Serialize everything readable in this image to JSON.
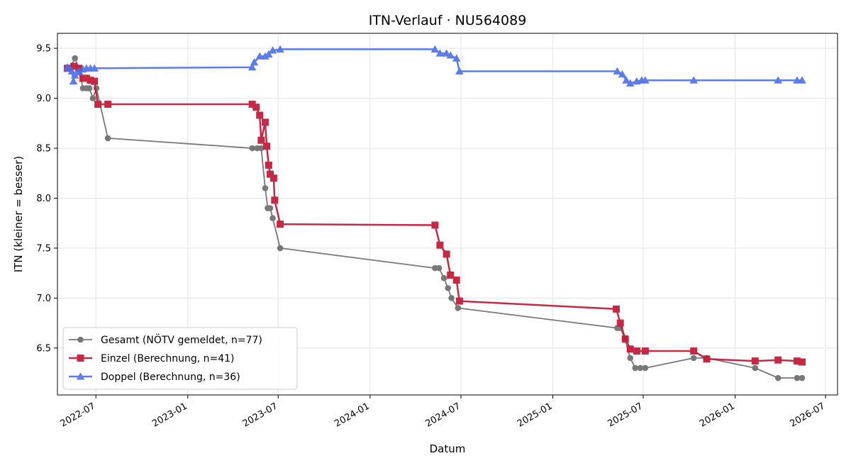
{
  "chart_data": {
    "type": "line",
    "title": "ITN-Verlauf · NU564089",
    "xlabel": "Datum",
    "ylabel": "ITN  (kleiner = besser)",
    "xlim": [
      "2022-04-15",
      "2026-07-25"
    ],
    "ylim": [
      6.03,
      9.65
    ],
    "grid": true,
    "legend_position": "lower-left",
    "x_ticks": [
      "2022-07",
      "2023-01",
      "2023-07",
      "2024-01",
      "2024-07",
      "2025-01",
      "2025-07",
      "2026-01",
      "2026-07"
    ],
    "y_ticks": [
      "6.5",
      "7.0",
      "7.5",
      "8.0",
      "8.5",
      "9.0",
      "9.5"
    ],
    "series": [
      {
        "name": "Gesamt (NÖTV gemeldet, n=77)",
        "color": "#404040",
        "marker": "circle",
        "points": [
          [
            "2022-05-10",
            9.3
          ],
          [
            "2022-05-20",
            9.4
          ],
          [
            "2022-05-28",
            9.3
          ],
          [
            "2022-06-05",
            9.1
          ],
          [
            "2022-06-12",
            9.1
          ],
          [
            "2022-06-18",
            9.1
          ],
          [
            "2022-06-25",
            9.0
          ],
          [
            "2022-07-02",
            9.1
          ],
          [
            "2022-07-25",
            8.6
          ],
          [
            "2023-05-10",
            8.5
          ],
          [
            "2023-05-20",
            8.5
          ],
          [
            "2023-05-28",
            8.5
          ],
          [
            "2023-06-05",
            8.1
          ],
          [
            "2023-06-10",
            7.9
          ],
          [
            "2023-06-15",
            7.9
          ],
          [
            "2023-06-20",
            7.8
          ],
          [
            "2023-07-05",
            7.5
          ],
          [
            "2024-05-10",
            7.3
          ],
          [
            "2024-05-18",
            7.3
          ],
          [
            "2024-05-28",
            7.2
          ],
          [
            "2024-06-05",
            7.1
          ],
          [
            "2024-06-12",
            7.0
          ],
          [
            "2024-06-25",
            6.9
          ],
          [
            "2025-05-10",
            6.7
          ],
          [
            "2025-05-16",
            6.7
          ],
          [
            "2025-05-25",
            6.6
          ],
          [
            "2025-06-05",
            6.4
          ],
          [
            "2025-06-15",
            6.3
          ],
          [
            "2025-06-25",
            6.3
          ],
          [
            "2025-07-05",
            6.3
          ],
          [
            "2025-10-10",
            6.4
          ],
          [
            "2025-11-05",
            6.4
          ],
          [
            "2026-02-10",
            6.3
          ],
          [
            "2026-03-28",
            6.2
          ],
          [
            "2026-05-05",
            6.2
          ],
          [
            "2026-05-15",
            6.2
          ]
        ]
      },
      {
        "name": "Einzel (Berechnung, n=41)",
        "color": "#c41e3a",
        "marker": "square",
        "points": [
          [
            "2022-05-05",
            9.3
          ],
          [
            "2022-05-18",
            9.32
          ],
          [
            "2022-05-28",
            9.3
          ],
          [
            "2022-06-05",
            9.2
          ],
          [
            "2022-06-12",
            9.2
          ],
          [
            "2022-06-20",
            9.18
          ],
          [
            "2022-06-28",
            9.17
          ],
          [
            "2022-07-05",
            8.94
          ],
          [
            "2022-07-25",
            8.94
          ],
          [
            "2023-05-10",
            8.94
          ],
          [
            "2023-05-18",
            8.91
          ],
          [
            "2023-05-25",
            8.83
          ],
          [
            "2023-05-28",
            8.58
          ],
          [
            "2023-06-05",
            8.76
          ],
          [
            "2023-06-08",
            8.52
          ],
          [
            "2023-06-12",
            8.33
          ],
          [
            "2023-06-15",
            8.24
          ],
          [
            "2023-06-22",
            8.2
          ],
          [
            "2023-06-24",
            7.98
          ],
          [
            "2023-07-05",
            7.74
          ],
          [
            "2024-05-10",
            7.73
          ],
          [
            "2024-05-20",
            7.53
          ],
          [
            "2024-06-02",
            7.44
          ],
          [
            "2024-06-10",
            7.23
          ],
          [
            "2024-06-22",
            7.18
          ],
          [
            "2024-06-28",
            6.97
          ],
          [
            "2025-05-08",
            6.89
          ],
          [
            "2025-05-16",
            6.75
          ],
          [
            "2025-05-26",
            6.59
          ],
          [
            "2025-06-05",
            6.49
          ],
          [
            "2025-06-18",
            6.47
          ],
          [
            "2025-07-05",
            6.47
          ],
          [
            "2025-10-10",
            6.47
          ],
          [
            "2025-11-05",
            6.39
          ],
          [
            "2026-02-10",
            6.37
          ],
          [
            "2026-03-28",
            6.38
          ],
          [
            "2026-05-05",
            6.37
          ],
          [
            "2026-05-15",
            6.36
          ]
        ]
      },
      {
        "name": "Doppel (Berechnung, n=36)",
        "color": "#4a6ee8",
        "marker": "triangle",
        "points": [
          [
            "2022-05-05",
            9.31
          ],
          [
            "2022-05-10",
            9.3
          ],
          [
            "2022-05-14",
            9.27
          ],
          [
            "2022-05-17",
            9.17
          ],
          [
            "2022-05-20",
            9.23
          ],
          [
            "2022-05-25",
            9.26
          ],
          [
            "2022-05-28",
            9.27
          ],
          [
            "2022-06-05",
            9.29
          ],
          [
            "2022-06-12",
            9.3
          ],
          [
            "2022-06-20",
            9.3
          ],
          [
            "2022-06-28",
            9.3
          ],
          [
            "2023-05-10",
            9.31
          ],
          [
            "2023-05-14",
            9.36
          ],
          [
            "2023-05-25",
            9.42
          ],
          [
            "2023-06-05",
            9.42
          ],
          [
            "2023-06-12",
            9.44
          ],
          [
            "2023-06-20",
            9.48
          ],
          [
            "2023-07-05",
            9.49
          ],
          [
            "2024-05-10",
            9.49
          ],
          [
            "2024-05-20",
            9.45
          ],
          [
            "2024-06-02",
            9.45
          ],
          [
            "2024-06-10",
            9.43
          ],
          [
            "2024-06-22",
            9.4
          ],
          [
            "2024-06-28",
            9.27
          ],
          [
            "2025-05-10",
            9.27
          ],
          [
            "2025-05-20",
            9.24
          ],
          [
            "2025-05-28",
            9.18
          ],
          [
            "2025-06-05",
            9.15
          ],
          [
            "2025-06-18",
            9.17
          ],
          [
            "2025-06-28",
            9.18
          ],
          [
            "2025-07-05",
            9.18
          ],
          [
            "2025-10-10",
            9.18
          ],
          [
            "2026-03-28",
            9.18
          ],
          [
            "2026-05-05",
            9.18
          ],
          [
            "2026-05-15",
            9.18
          ]
        ]
      }
    ]
  }
}
